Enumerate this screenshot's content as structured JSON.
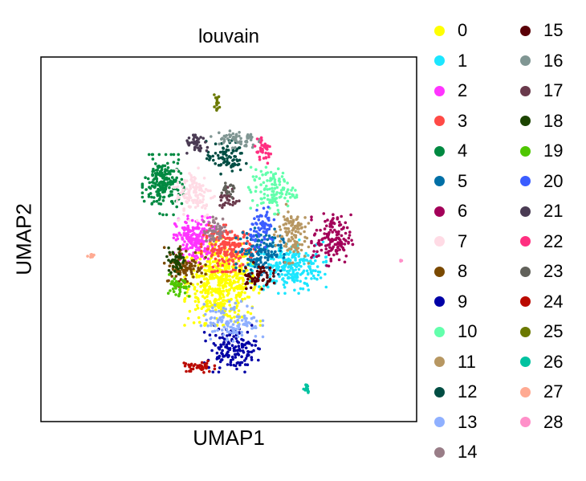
{
  "chart_data": {
    "type": "scatter",
    "title": "louvain",
    "xlabel": "UMAP1",
    "ylabel": "UMAP2",
    "xticks": [],
    "yticks": [],
    "grid": false,
    "legend_position": "outside-right",
    "xlim": [
      -1,
      11
    ],
    "ylim": [
      -1,
      11
    ],
    "series": [
      {
        "name": "0",
        "color": "#ffff00",
        "center": [
          4.8,
          3.6
        ],
        "spread": [
          0.55,
          0.65
        ],
        "count": 520
      },
      {
        "name": "1",
        "color": "#1ce6ff",
        "center": [
          6.9,
          4.1
        ],
        "spread": [
          0.55,
          0.4
        ],
        "count": 260
      },
      {
        "name": "2",
        "color": "#ff34ff",
        "center": [
          3.9,
          5.0
        ],
        "spread": [
          0.3,
          0.35
        ],
        "count": 200
      },
      {
        "name": "3",
        "color": "#ff4a46",
        "center": [
          5.0,
          4.7
        ],
        "spread": [
          0.4,
          0.35
        ],
        "count": 200
      },
      {
        "name": "4",
        "color": "#008941",
        "center": [
          2.9,
          6.8
        ],
        "spread": [
          0.3,
          0.45
        ],
        "count": 200
      },
      {
        "name": "5",
        "color": "#006fa6",
        "center": [
          6.0,
          4.6
        ],
        "spread": [
          0.35,
          0.35
        ],
        "count": 150
      },
      {
        "name": "6",
        "color": "#a30059",
        "center": [
          8.3,
          5.0
        ],
        "spread": [
          0.3,
          0.4
        ],
        "count": 140
      },
      {
        "name": "7",
        "color": "#ffdbe5",
        "center": [
          3.9,
          6.5
        ],
        "spread": [
          0.3,
          0.4
        ],
        "count": 120
      },
      {
        "name": "8",
        "color": "#7a4900",
        "center": [
          3.6,
          4.1
        ],
        "spread": [
          0.3,
          0.3
        ],
        "count": 100
      },
      {
        "name": "9",
        "color": "#0000a6",
        "center": [
          5.1,
          1.4
        ],
        "spread": [
          0.4,
          0.35
        ],
        "count": 150
      },
      {
        "name": "10",
        "color": "#63ffac",
        "center": [
          6.4,
          6.6
        ],
        "spread": [
          0.35,
          0.35
        ],
        "count": 120
      },
      {
        "name": "11",
        "color": "#b79762",
        "center": [
          7.0,
          5.2
        ],
        "spread": [
          0.25,
          0.45
        ],
        "count": 110
      },
      {
        "name": "12",
        "color": "#004d43",
        "center": [
          4.9,
          7.7
        ],
        "spread": [
          0.3,
          0.25
        ],
        "count": 80
      },
      {
        "name": "13",
        "color": "#8fb0ff",
        "center": [
          5.1,
          2.3
        ],
        "spread": [
          0.45,
          0.3
        ],
        "count": 120
      },
      {
        "name": "14",
        "color": "#997d87",
        "center": [
          4.6,
          5.3
        ],
        "spread": [
          0.2,
          0.2
        ],
        "count": 50
      },
      {
        "name": "15",
        "color": "#5a0007",
        "center": [
          5.9,
          3.8
        ],
        "spread": [
          0.25,
          0.2
        ],
        "count": 60
      },
      {
        "name": "16",
        "color": "#809693",
        "center": [
          5.2,
          8.3
        ],
        "spread": [
          0.35,
          0.15
        ],
        "count": 60
      },
      {
        "name": "17",
        "color": "#6a3a4c",
        "center": [
          5.0,
          6.3
        ],
        "spread": [
          0.15,
          0.2
        ],
        "count": 30
      },
      {
        "name": "18",
        "color": "#1b4400",
        "center": [
          3.3,
          4.3
        ],
        "spread": [
          0.15,
          0.2
        ],
        "count": 40
      },
      {
        "name": "19",
        "color": "#4fc601",
        "center": [
          3.4,
          3.4
        ],
        "spread": [
          0.15,
          0.2
        ],
        "count": 40
      },
      {
        "name": "20",
        "color": "#3b5dff",
        "center": [
          6.1,
          5.4
        ],
        "spread": [
          0.2,
          0.3
        ],
        "count": 70
      },
      {
        "name": "21",
        "color": "#4a3b53",
        "center": [
          4.0,
          8.1
        ],
        "spread": [
          0.2,
          0.15
        ],
        "count": 40
      },
      {
        "name": "22",
        "color": "#ff2f80",
        "center": [
          6.1,
          7.9
        ],
        "spread": [
          0.15,
          0.2
        ],
        "count": 40
      },
      {
        "name": "23",
        "color": "#61615a",
        "center": [
          5.0,
          6.6
        ],
        "spread": [
          0.15,
          0.15
        ],
        "count": 20
      },
      {
        "name": "24",
        "color": "#ba0900",
        "center": [
          4.0,
          0.8
        ],
        "spread": [
          0.25,
          0.1
        ],
        "count": 40
      },
      {
        "name": "25",
        "color": "#6b7900",
        "center": [
          4.6,
          9.5
        ],
        "spread": [
          0.06,
          0.12
        ],
        "count": 15
      },
      {
        "name": "26",
        "color": "#00c2a0",
        "center": [
          7.5,
          0.1
        ],
        "spread": [
          0.05,
          0.1
        ],
        "count": 12
      },
      {
        "name": "27",
        "color": "#ffaa92",
        "center": [
          0.6,
          4.5
        ],
        "spread": [
          0.05,
          0.05
        ],
        "count": 8
      },
      {
        "name": "28",
        "color": "#ff90c9",
        "center": [
          10.5,
          4.3
        ],
        "spread": [
          0.03,
          0.03
        ],
        "count": 4
      }
    ]
  }
}
